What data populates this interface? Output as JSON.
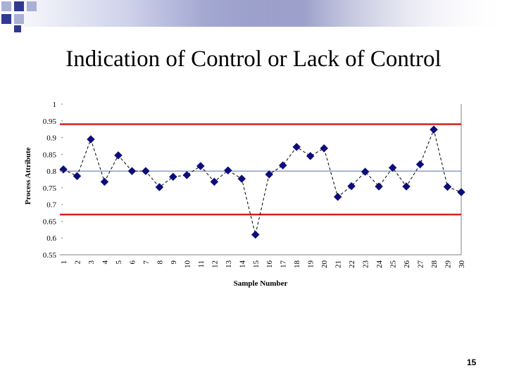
{
  "slide": {
    "title": "Indication of Control or Lack of Control",
    "page_number": "15"
  },
  "colors": {
    "control_limit": "#d42020",
    "center_line": "#4b6fb8",
    "marker": "#0d0d7a",
    "decor_dark": "#2f3a8f",
    "decor_light": "#aab0d6"
  },
  "chart_data": {
    "type": "line",
    "title": "",
    "xlabel": "Sample Number",
    "ylabel": "Process Attribute",
    "x": [
      1,
      2,
      3,
      4,
      5,
      6,
      7,
      8,
      9,
      10,
      11,
      12,
      13,
      14,
      15,
      16,
      17,
      18,
      19,
      20,
      21,
      22,
      23,
      24,
      25,
      26,
      27,
      28,
      29,
      30
    ],
    "series": [
      {
        "values": [
          0.805,
          0.785,
          0.895,
          0.768,
          0.847,
          0.8,
          0.8,
          0.752,
          0.783,
          0.788,
          0.815,
          0.768,
          0.802,
          0.777,
          0.61,
          0.79,
          0.817,
          0.872,
          0.845,
          0.868,
          0.723,
          0.755,
          0.798,
          0.754,
          0.81,
          0.754,
          0.82,
          0.924,
          0.753,
          0.737
        ],
        "line_style": "dashed",
        "marker": "diamond"
      }
    ],
    "reference_lines": [
      {
        "label": "upper",
        "y": 0.94,
        "color": "#d42020"
      },
      {
        "label": "center",
        "y": 0.8,
        "color": "#4b6fb8"
      },
      {
        "label": "lower",
        "y": 0.67,
        "color": "#d42020"
      }
    ],
    "ylim": [
      0.55,
      1.0
    ],
    "yticks": [
      "0.55",
      "0.6",
      "0.65",
      "0.7",
      "0.75",
      "0.8",
      "0.85",
      "0.9",
      "0.95",
      "1"
    ],
    "xticks": [
      "1",
      "2",
      "3",
      "4",
      "5",
      "6",
      "7",
      "8",
      "9",
      "10",
      "11",
      "12",
      "13",
      "14",
      "15",
      "16",
      "17",
      "18",
      "19",
      "20",
      "21",
      "22",
      "23",
      "24",
      "25",
      "26",
      "27",
      "28",
      "29",
      "30"
    ],
    "grid": false,
    "legend": "none"
  }
}
